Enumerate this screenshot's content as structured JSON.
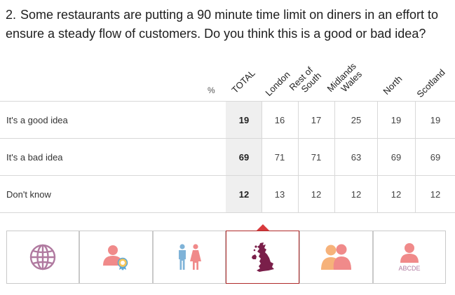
{
  "question": {
    "number": "2.",
    "text": "Some restaurants are putting a 90 minute time limit on diners in an effort to ensure a steady flow of customers. Do you think this is a good or bad idea?"
  },
  "percent_symbol": "%",
  "chart_data": {
    "type": "table",
    "columns": [
      "TOTAL",
      "London",
      "Rest of South",
      "Midlands Wales",
      "North",
      "Scotland"
    ],
    "rows": [
      {
        "label": "It's a good idea",
        "values": [
          19,
          16,
          17,
          25,
          19,
          19
        ]
      },
      {
        "label": "It's a bad idea",
        "values": [
          69,
          71,
          71,
          63,
          69,
          69
        ]
      },
      {
        "label": "Don't know",
        "values": [
          12,
          13,
          12,
          12,
          12,
          12
        ]
      }
    ]
  },
  "col_head_lines": {
    "total": "TOTAL",
    "london": "London",
    "rest_1": "Rest of",
    "rest_2": "South",
    "mid_1": "Midlands",
    "mid_2": "Wales",
    "north": "North",
    "scotland": "Scotland"
  },
  "tabs": [
    {
      "icon": "globe-icon",
      "active": false
    },
    {
      "icon": "person-award-icon",
      "active": false
    },
    {
      "icon": "man-woman-icon",
      "active": false
    },
    {
      "icon": "uk-map-icon",
      "active": true
    },
    {
      "icon": "two-people-icon",
      "active": false
    },
    {
      "icon": "person-abcde-icon",
      "active": false,
      "caption": "ABCDE"
    }
  ],
  "colors": {
    "accent": "#d8393c",
    "globe": "#b07aa0",
    "map": "#7a1f4a",
    "person_pink": "#f08a8a",
    "person_blue": "#7fb3d8",
    "person_orange": "#f6b27a",
    "award_blue": "#5ba7d6"
  }
}
